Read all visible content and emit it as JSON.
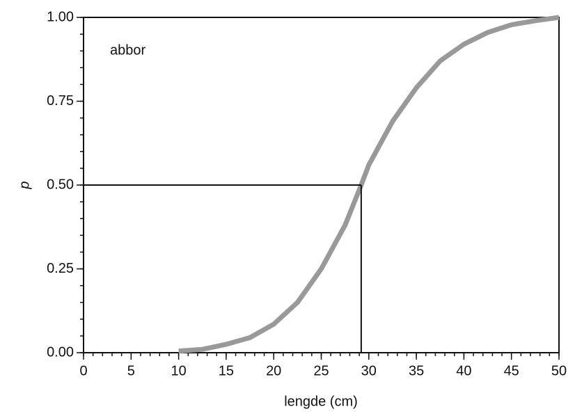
{
  "chart_data": {
    "type": "line",
    "xlabel": "lengde (cm)",
    "ylabel": "p",
    "annotation": "abbor",
    "x": [
      10,
      12.5,
      15,
      17.5,
      20,
      22.5,
      25,
      27.5,
      29.2,
      30,
      32.5,
      35,
      37.5,
      40,
      42.5,
      45,
      47.5,
      50
    ],
    "series": [
      {
        "color": "#999999",
        "values": [
          0.005,
          0.01,
          0.025,
          0.045,
          0.085,
          0.15,
          0.25,
          0.38,
          0.5,
          0.56,
          0.69,
          0.79,
          0.87,
          0.92,
          0.955,
          0.978,
          0.99,
          1.0
        ]
      }
    ],
    "reference": {
      "x": 29.2,
      "y": 0.5
    },
    "xlim": [
      0,
      50
    ],
    "xticks": [
      0,
      5,
      10,
      15,
      20,
      25,
      30,
      35,
      40,
      45,
      50
    ],
    "xminor": 1,
    "ylim": [
      0,
      1
    ],
    "yticks": [
      {
        "value": 0,
        "label": "0.00"
      },
      {
        "value": 0.25,
        "label": "0.25"
      },
      {
        "value": 0.5,
        "label": "0.50"
      },
      {
        "value": 0.75,
        "label": "0.75"
      },
      {
        "value": 1,
        "label": "1.00"
      }
    ],
    "yminor": 0.05
  }
}
